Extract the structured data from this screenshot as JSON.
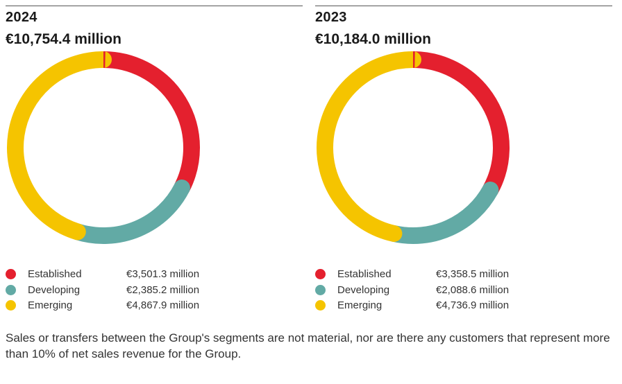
{
  "colors": {
    "established": "#e4202e",
    "developing": "#62aaa5",
    "emerging": "#f5c400"
  },
  "chart_data": [
    {
      "type": "pie",
      "title": "2024",
      "subtitle": "€10,754.4 million",
      "categories": [
        "Established",
        "Developing",
        "Emerging"
      ],
      "values": [
        3501.3,
        2385.2,
        4867.9
      ],
      "value_labels": [
        "€3,501.3 million",
        "€2,385.2 million",
        "€4,867.9 million"
      ],
      "series_colors": [
        "#e4202e",
        "#62aaa5",
        "#f5c400"
      ],
      "style": "donut",
      "legend": "bottom"
    },
    {
      "type": "pie",
      "title": "2023",
      "subtitle": "€10,184.0 million",
      "categories": [
        "Established",
        "Developing",
        "Emerging"
      ],
      "values": [
        3358.5,
        2088.6,
        4736.9
      ],
      "value_labels": [
        "€3,358.5 million",
        "€2,088.6 million",
        "€4,736.9 million"
      ],
      "series_colors": [
        "#e4202e",
        "#62aaa5",
        "#f5c400"
      ],
      "style": "donut",
      "legend": "bottom"
    }
  ],
  "footnote": "Sales or transfers between the Group's segments are not material, nor are there any customers that represent more than 10% of net sales revenue for the Group."
}
